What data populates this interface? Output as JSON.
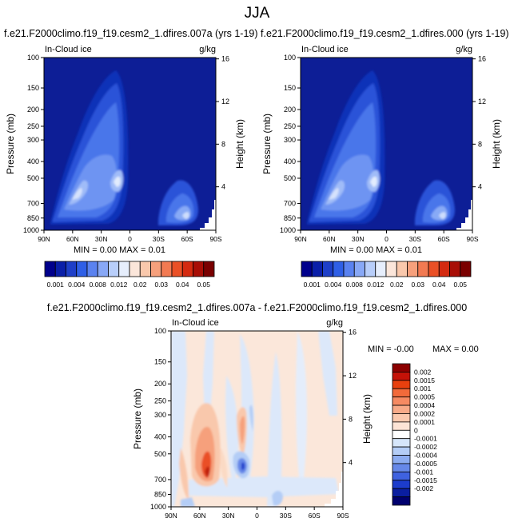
{
  "figure": {
    "title": "JJA",
    "diff_title": "f.e21.F2000climo.f19_f19.cesm2_1.dfires.007a - f.e21.F2000climo.f19_f19.cesm2_1.dfires.000"
  },
  "chart_data": [
    {
      "type": "heatmap",
      "title": "f.e21.F2000climo.f19_f19.cesm2_1.dfires.007a (yrs 1-19)",
      "variable": "In-Cloud ice",
      "units": "g/kg",
      "ylabel": "Pressure (mb)",
      "ylabel_right": "Height (km)",
      "x_ticks": [
        "90N",
        "60N",
        "30N",
        "0",
        "30S",
        "60S",
        "90S"
      ],
      "y_ticks": [
        "100",
        "150",
        "200",
        "250",
        "300",
        "400",
        "500",
        "700",
        "850",
        "1000"
      ],
      "y_right_ticks": [
        "16",
        "12",
        "8",
        "4"
      ],
      "stats": "MIN =  0.00  MAX =  0.01",
      "colorbar": {
        "labels": [
          "0.001",
          "0.004",
          "0.008",
          "0.012",
          "0.02",
          "0.03",
          "0.04",
          "0.05"
        ],
        "colors": [
          "#00008c",
          "#0a1fa8",
          "#1e3fc8",
          "#2f5fe6",
          "#5a82f0",
          "#88a8f6",
          "#b8cefa",
          "#e6eefc",
          "#fbe6da",
          "#f9c8ac",
          "#f6a07c",
          "#f27a52",
          "#ea5026",
          "#d42a10",
          "#a80e06",
          "#7a0000"
        ]
      }
    },
    {
      "type": "heatmap",
      "title": "f.e21.F2000climo.f19_f19.cesm2_1.dfires.000 (yrs 1-19)",
      "variable": "In-Cloud ice",
      "units": "g/kg",
      "ylabel": "Pressure (mb)",
      "ylabel_right": "Height (km)",
      "x_ticks": [
        "90N",
        "60N",
        "30N",
        "0",
        "30S",
        "60S",
        "90S"
      ],
      "y_ticks": [
        "100",
        "150",
        "200",
        "250",
        "300",
        "400",
        "500",
        "700",
        "850",
        "1000"
      ],
      "y_right_ticks": [
        "16",
        "12",
        "8",
        "4"
      ],
      "stats": "MIN =  0.00  MAX =  0.01",
      "colorbar": {
        "labels": [
          "0.001",
          "0.004",
          "0.008",
          "0.012",
          "0.02",
          "0.03",
          "0.04",
          "0.05"
        ],
        "colors": [
          "#00008c",
          "#0a1fa8",
          "#1e3fc8",
          "#2f5fe6",
          "#5a82f0",
          "#88a8f6",
          "#b8cefa",
          "#e6eefc",
          "#fbe6da",
          "#f9c8ac",
          "#f6a07c",
          "#f27a52",
          "#ea5026",
          "#d42a10",
          "#a80e06",
          "#7a0000"
        ]
      }
    },
    {
      "type": "heatmap",
      "title": "f.e21.F2000climo.f19_f19.cesm2_1.dfires.007a - f.e21.F2000climo.f19_f19.cesm2_1.dfires.000",
      "variable": "In-Cloud ice",
      "units": "g/kg",
      "ylabel": "Pressure (mb)",
      "ylabel_right": "Height (km)",
      "x_ticks": [
        "90N",
        "60N",
        "30N",
        "0",
        "30S",
        "60S",
        "90S"
      ],
      "y_ticks": [
        "100",
        "150",
        "200",
        "250",
        "300",
        "400",
        "500",
        "700",
        "850",
        "1000"
      ],
      "y_right_ticks": [
        "16",
        "12",
        "8",
        "4"
      ],
      "stats_min": "MIN = -0.00",
      "stats_max": "MAX =  0.00",
      "colorbar": {
        "labels": [
          "0.002",
          "0.0015",
          "0.001",
          "0.0005",
          "0.0004",
          "0.0002",
          "0.0001",
          "0",
          "-0.0001",
          "-0.0002",
          "-0.0004",
          "-0.0005",
          "-0.001",
          "-0.0015",
          "-0.002"
        ],
        "colors": [
          "#8c0000",
          "#c41208",
          "#e8400e",
          "#f26a3a",
          "#f68a62",
          "#f8aa88",
          "#fbc9ae",
          "#fde4d6",
          "#ffffff",
          "#d6e6fa",
          "#b4cdf6",
          "#8cacf0",
          "#6688e8",
          "#3f62e0",
          "#1c3ccc",
          "#0a1ea0",
          "#00006e"
        ]
      }
    }
  ]
}
